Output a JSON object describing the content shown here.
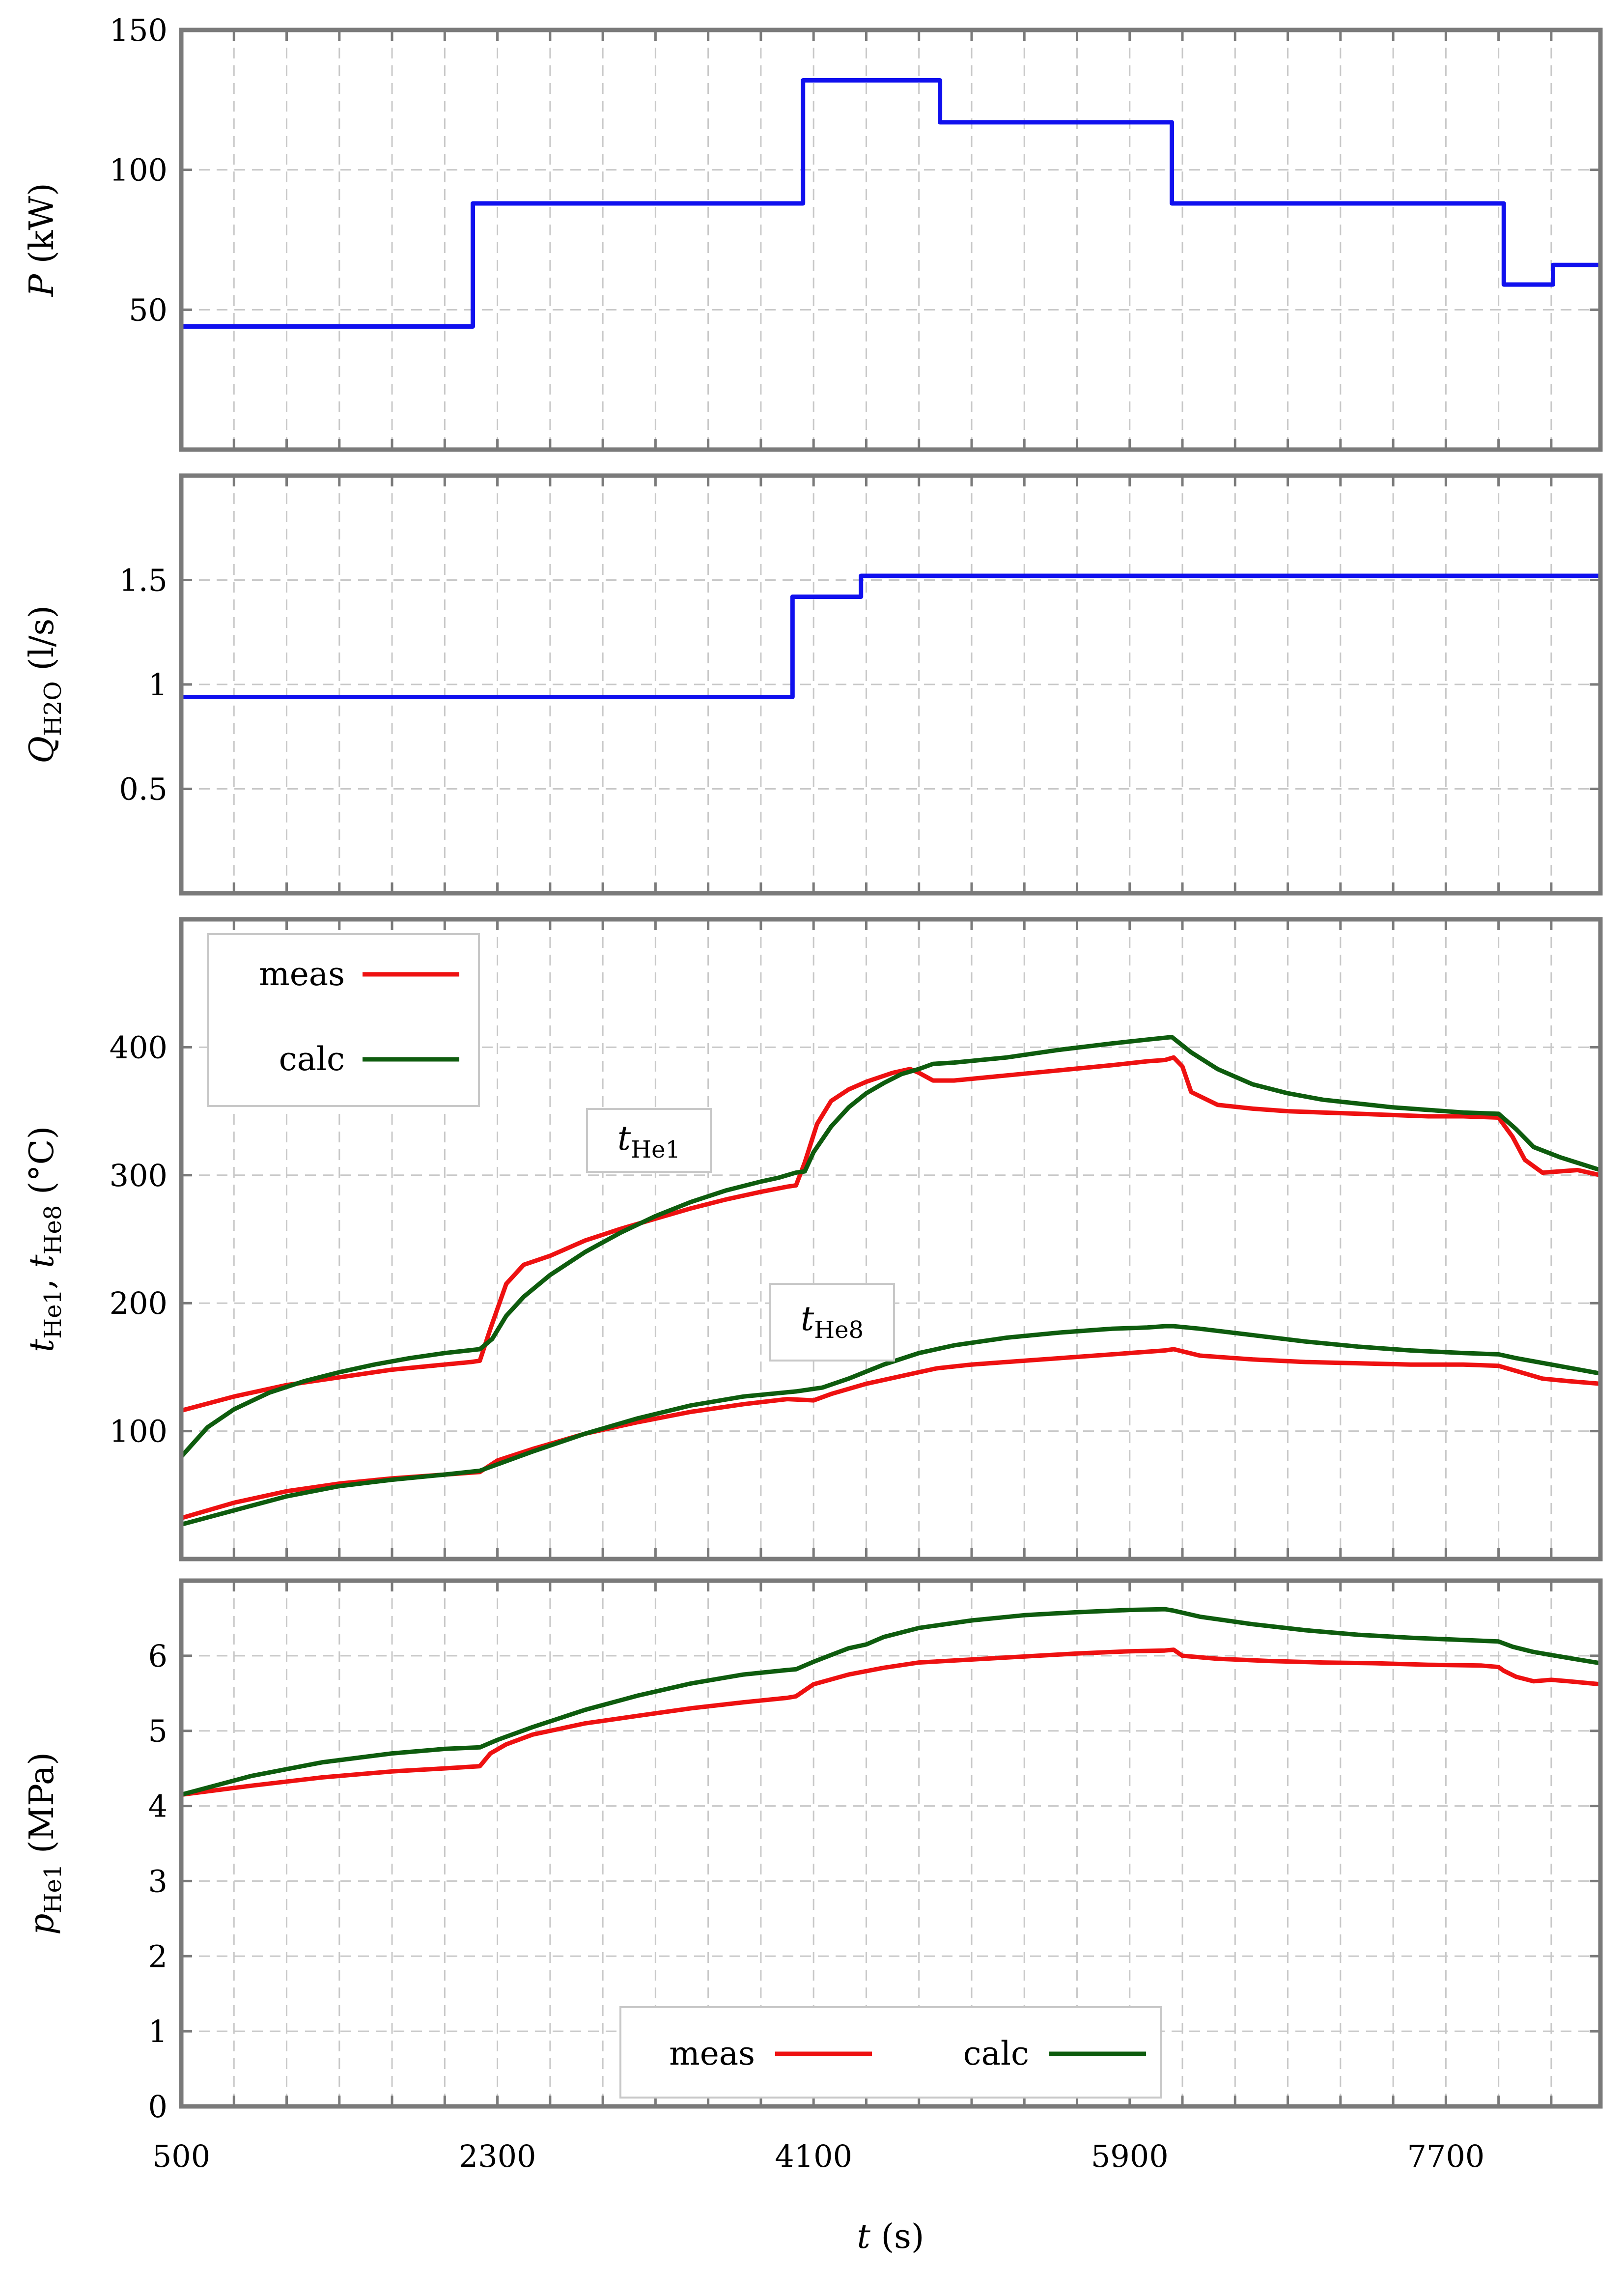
{
  "colors": {
    "power": "#1010ee",
    "flow": "#1010ee",
    "meas": "#ee1111",
    "calc": "#0e5c0e"
  },
  "x_axis": {
    "label_var": "t",
    "label_unit": " (s)",
    "ticks": [
      "500",
      "2300",
      "4100",
      "5900",
      "7700"
    ],
    "tick_values": [
      500,
      2300,
      4100,
      5900,
      7700
    ],
    "range": [
      500,
      8580
    ]
  },
  "panels": {
    "power": {
      "ylabel_var": "P",
      "ylabel_unit": " (kW)",
      "ylim": [
        0,
        150
      ],
      "tick_values": [
        50,
        100,
        150
      ],
      "tick_labels": [
        "50",
        "100",
        "150"
      ]
    },
    "flow": {
      "ylabel_var": "Q",
      "ylabel_sub": "H2O",
      "ylabel_unit": " (l/s)",
      "ylim": [
        0,
        2
      ],
      "tick_values": [
        0.5,
        1,
        1.5
      ],
      "tick_labels": [
        "0.5",
        "1",
        "1.5"
      ]
    },
    "temp": {
      "ylabel_a": "t",
      "ylabel_a_sub": "He1",
      "ylabel_sep": ", ",
      "ylabel_b": "t",
      "ylabel_b_sub": "He8",
      "ylabel_unit": " (°C)",
      "ylim": [
        0,
        500
      ],
      "tick_values": [
        100,
        200,
        300,
        400
      ],
      "tick_labels": [
        "100",
        "200",
        "300",
        "400"
      ],
      "legend": {
        "meas": "meas",
        "calc": "calc"
      },
      "annotations": {
        "he1": {
          "var": "t",
          "sub": "He1"
        },
        "he8": {
          "var": "t",
          "sub": "He8"
        }
      }
    },
    "pressure": {
      "ylabel_var": "p",
      "ylabel_sub": "He1",
      "ylabel_unit": " (MPa)",
      "ylim": [
        0,
        7
      ],
      "tick_values": [
        0,
        1,
        2,
        3,
        4,
        5,
        6
      ],
      "tick_labels": [
        "0",
        "1",
        "2",
        "3",
        "4",
        "5",
        "6"
      ],
      "legend": {
        "meas": "meas",
        "calc": "calc"
      }
    }
  },
  "chart_data": [
    {
      "type": "line",
      "title": "",
      "xlabel": "t (s)",
      "ylabel": "P (kW)",
      "ylim": [
        0,
        150
      ],
      "series": [
        {
          "name": "P",
          "x": [
            500,
            2160,
            2160,
            4040,
            4040,
            4820,
            4820,
            6140,
            6140,
            8030,
            8030,
            8310,
            8310,
            8580
          ],
          "y": [
            44,
            44,
            88,
            88,
            132,
            132,
            117,
            117,
            88,
            88,
            59,
            59,
            66,
            66
          ]
        }
      ]
    },
    {
      "type": "line",
      "title": "",
      "xlabel": "t (s)",
      "ylabel": "Q_H2O (l/s)",
      "ylim": [
        0,
        2
      ],
      "series": [
        {
          "name": "Q_H2O",
          "x": [
            500,
            3980,
            3980,
            4370,
            4370,
            8580
          ],
          "y": [
            0.94,
            0.94,
            1.42,
            1.42,
            1.52,
            1.52
          ]
        }
      ]
    },
    {
      "type": "line",
      "title": "",
      "xlabel": "t (s)",
      "ylabel": "t_He1, t_He8 (°C)",
      "ylim": [
        0,
        500
      ],
      "series": [
        {
          "name": "meas",
          "curve": "t_He1",
          "x": [
            500,
            800,
            1100,
            1400,
            1700,
            2000,
            2150,
            2200,
            2260,
            2350,
            2450,
            2600,
            2800,
            3000,
            3200,
            3400,
            3600,
            3800,
            3950,
            4000,
            4050,
            4120,
            4200,
            4300,
            4400,
            4550,
            4650,
            4700,
            4780,
            4900,
            5200,
            5500,
            5800,
            6000,
            6100,
            6150,
            6200,
            6250,
            6400,
            6600,
            6800,
            7000,
            7200,
            7400,
            7600,
            7800,
            8000,
            8080,
            8150,
            8250,
            8350,
            8450,
            8580
          ],
          "y": [
            116,
            127,
            136,
            142,
            148,
            152,
            154,
            155,
            180,
            215,
            230,
            237,
            249,
            258,
            266,
            274,
            281,
            287,
            291,
            292,
            310,
            340,
            358,
            367,
            373,
            380,
            383,
            380,
            374,
            374,
            378,
            382,
            386,
            389,
            390,
            392,
            385,
            365,
            355,
            352,
            350,
            349,
            348,
            347,
            346,
            346,
            345,
            330,
            312,
            302,
            303,
            304,
            300
          ]
        },
        {
          "name": "calc",
          "curve": "t_He1",
          "x": [
            500,
            650,
            800,
            1000,
            1200,
            1400,
            1600,
            1800,
            2000,
            2200,
            2270,
            2350,
            2450,
            2600,
            2800,
            3000,
            3200,
            3400,
            3600,
            3800,
            3900,
            4000,
            4050,
            4100,
            4200,
            4300,
            4400,
            4500,
            4600,
            4700,
            4780,
            4900,
            5200,
            5500,
            5800,
            6000,
            6140,
            6250,
            6400,
            6600,
            6800,
            7000,
            7200,
            7400,
            7600,
            7800,
            8000,
            8100,
            8200,
            8350,
            8580
          ],
          "y": [
            80,
            103,
            117,
            130,
            139,
            146,
            152,
            157,
            161,
            164,
            172,
            190,
            205,
            222,
            240,
            255,
            268,
            279,
            288,
            295,
            298,
            302,
            303,
            318,
            338,
            353,
            364,
            372,
            379,
            383,
            387,
            388,
            392,
            398,
            403,
            406,
            408,
            396,
            383,
            371,
            364,
            359,
            356,
            353,
            351,
            349,
            348,
            336,
            322,
            314,
            304
          ]
        },
        {
          "name": "meas",
          "curve": "t_He8",
          "x": [
            500,
            800,
            1100,
            1400,
            1700,
            2000,
            2200,
            2300,
            2500,
            2800,
            3100,
            3400,
            3700,
            3950,
            4100,
            4200,
            4400,
            4600,
            4800,
            5000,
            5300,
            5600,
            5900,
            6100,
            6150,
            6300,
            6600,
            6900,
            7200,
            7500,
            7800,
            8000,
            8100,
            8250,
            8400,
            8580
          ],
          "y": [
            32,
            44,
            53,
            59,
            63,
            66,
            68,
            77,
            86,
            98,
            107,
            115,
            121,
            125,
            124,
            129,
            137,
            143,
            149,
            152,
            155,
            158,
            161,
            163,
            164,
            159,
            156,
            154,
            153,
            152,
            152,
            151,
            147,
            141,
            139,
            137
          ]
        },
        {
          "name": "calc",
          "curve": "t_He8",
          "x": [
            500,
            800,
            1100,
            1400,
            1700,
            2000,
            2200,
            2300,
            2500,
            2800,
            3100,
            3400,
            3700,
            4000,
            4150,
            4300,
            4500,
            4700,
            4900,
            5200,
            5500,
            5800,
            6000,
            6100,
            6150,
            6300,
            6600,
            6900,
            7200,
            7500,
            7800,
            8000,
            8100,
            8300,
            8580
          ],
          "y": [
            27,
            38,
            49,
            57,
            62,
            66,
            69,
            74,
            84,
            98,
            110,
            120,
            127,
            131,
            134,
            141,
            152,
            161,
            167,
            173,
            177,
            180,
            181,
            182,
            182,
            180,
            175,
            170,
            166,
            163,
            161,
            160,
            157,
            152,
            145
          ]
        }
      ]
    },
    {
      "type": "line",
      "title": "",
      "xlabel": "t (s)",
      "ylabel": "p_He1 (MPa)",
      "ylim": [
        0,
        7
      ],
      "series": [
        {
          "name": "meas",
          "x": [
            500,
            900,
            1300,
            1700,
            2000,
            2200,
            2260,
            2350,
            2500,
            2800,
            3100,
            3400,
            3700,
            3950,
            4000,
            4100,
            4300,
            4500,
            4700,
            5000,
            5300,
            5600,
            5900,
            6100,
            6150,
            6200,
            6400,
            6700,
            7000,
            7300,
            7600,
            7900,
            8000,
            8030,
            8100,
            8200,
            8300,
            8400,
            8580
          ],
          "y": [
            4.15,
            4.27,
            4.38,
            4.46,
            4.5,
            4.53,
            4.7,
            4.82,
            4.95,
            5.1,
            5.2,
            5.3,
            5.38,
            5.44,
            5.46,
            5.62,
            5.75,
            5.84,
            5.91,
            5.95,
            5.99,
            6.03,
            6.06,
            6.07,
            6.08,
            6.0,
            5.96,
            5.93,
            5.91,
            5.9,
            5.88,
            5.87,
            5.85,
            5.8,
            5.72,
            5.66,
            5.68,
            5.66,
            5.62
          ]
        },
        {
          "name": "calc",
          "x": [
            500,
            900,
            1300,
            1700,
            2000,
            2200,
            2300,
            2500,
            2800,
            3100,
            3400,
            3700,
            3950,
            4000,
            4100,
            4300,
            4400,
            4500,
            4700,
            5000,
            5300,
            5600,
            5900,
            6100,
            6150,
            6300,
            6600,
            6900,
            7200,
            7500,
            7800,
            8000,
            8080,
            8200,
            8400,
            8580
          ],
          "y": [
            4.15,
            4.4,
            4.58,
            4.7,
            4.76,
            4.78,
            4.88,
            5.05,
            5.28,
            5.47,
            5.63,
            5.75,
            5.81,
            5.82,
            5.92,
            6.1,
            6.15,
            6.25,
            6.37,
            6.47,
            6.54,
            6.58,
            6.61,
            6.62,
            6.6,
            6.52,
            6.42,
            6.34,
            6.28,
            6.24,
            6.21,
            6.19,
            6.12,
            6.05,
            5.97,
            5.9
          ]
        }
      ]
    }
  ]
}
